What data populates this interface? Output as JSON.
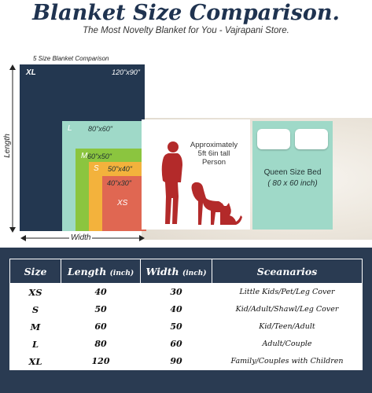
{
  "header": {
    "title": "Blanket Size Comparison.",
    "subtitle": "The Most Novelty Blanket for You - Vajrapani Store."
  },
  "diagram": {
    "label": "5 Size Blanket Comparison",
    "blocks": [
      {
        "size": "XL",
        "dims": "120\"x90\"",
        "color": "#233750"
      },
      {
        "size": "L",
        "dims": "80\"x60\"",
        "color": "#9fd9c8"
      },
      {
        "size": "M",
        "dims": "60\"x50\"",
        "color": "#8bc53f"
      },
      {
        "size": "S",
        "dims": "50\"x40\"",
        "color": "#f3b23c"
      },
      {
        "size": "XS",
        "dims": "40\"x30\"",
        "color": "#e06752"
      }
    ],
    "length_label": "Length",
    "width_label": "Width",
    "person_text": [
      "Approximately",
      "5ft 6in tall",
      "Person"
    ],
    "queen_text": [
      "Queen Size Bed",
      "( 80 x 60 inch)"
    ],
    "figure_color": "#b32a2a"
  },
  "table": {
    "headers": {
      "size": "Size",
      "length": "Length",
      "length_unit": "(inch)",
      "width": "Width",
      "width_unit": "(inch)",
      "scenarios": "Sceanarios"
    },
    "rows": [
      {
        "size": "XS",
        "length": "40",
        "width": "30",
        "scenario": "Little Kids/Pet/Leg Cover"
      },
      {
        "size": "S",
        "length": "50",
        "width": "40",
        "scenario": "Kid/Adult/Shawl/Leg Cover"
      },
      {
        "size": "M",
        "length": "60",
        "width": "50",
        "scenario": "Kid/Teen/Adult"
      },
      {
        "size": "L",
        "length": "80",
        "width": "60",
        "scenario": "Adult/Couple"
      },
      {
        "size": "XL",
        "length": "120",
        "width": "90",
        "scenario": "Family/Couples with Children"
      }
    ]
  }
}
